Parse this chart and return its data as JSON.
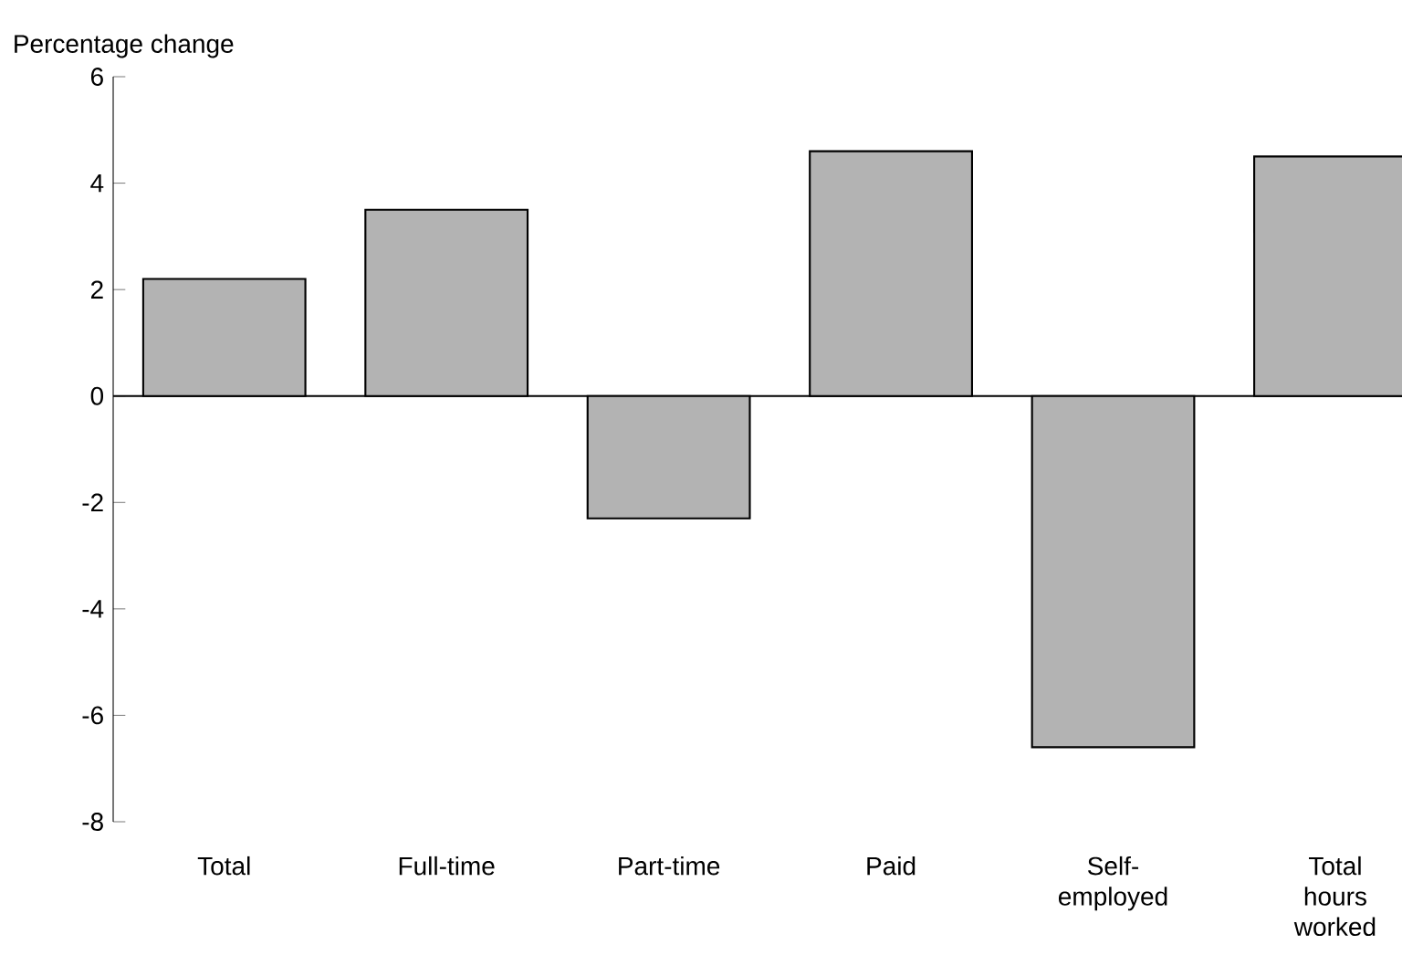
{
  "chart_data": {
    "type": "bar",
    "ylabel": "Percentage change",
    "categories": [
      "Total",
      "Full-time",
      "Part-time",
      "Paid",
      "Self-employed",
      "Total hours worked"
    ],
    "values": [
      2.2,
      3.5,
      -2.3,
      4.6,
      -6.6,
      4.5
    ],
    "color": "#b3b3b3",
    "ylim": [
      -8,
      6
    ],
    "yticks": [
      -8,
      -6,
      -4,
      -2,
      0,
      2,
      4,
      6
    ]
  }
}
